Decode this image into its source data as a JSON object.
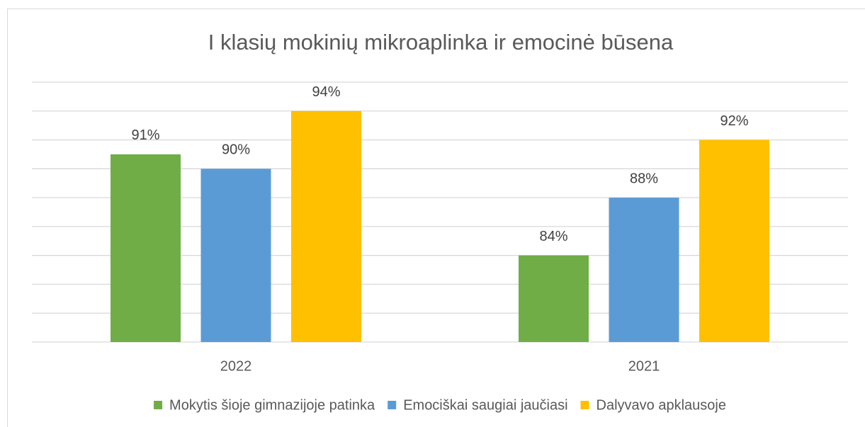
{
  "chart_data": {
    "type": "bar",
    "title": "I klasių mokinių mikroaplinka ir emocinė būsena",
    "categories": [
      "2022",
      "2021"
    ],
    "series": [
      {
        "name": "Mokytis šioje gimnazijoje patinka",
        "color": "#70ad47",
        "values": [
          91,
          84
        ],
        "value_labels": [
          "91%",
          "84%"
        ]
      },
      {
        "name": "Emociškai saugiai jaučiasi",
        "color": "#5b9bd5",
        "values": [
          90,
          88
        ],
        "value_labels": [
          "90%",
          "88%"
        ]
      },
      {
        "name": "Dalyvavo apklausoje",
        "color": "#ffc000",
        "values": [
          94,
          92
        ],
        "value_labels": [
          "94%",
          "92%"
        ]
      }
    ],
    "ylim": [
      78,
      96
    ],
    "yticks": [
      78,
      80,
      82,
      84,
      86,
      88,
      90,
      92,
      94,
      96
    ],
    "grid": true,
    "legend": "bottom"
  }
}
